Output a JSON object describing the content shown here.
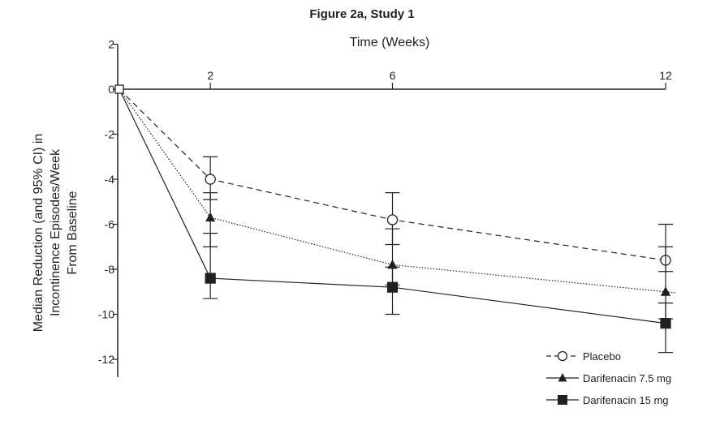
{
  "chart_data": {
    "type": "line",
    "title": "Figure 2a, Study 1",
    "xlabel": "Time (Weeks)",
    "ylabel": [
      "Median Reduction (and 95% CI) in",
      "Incontinence Episodes/Week",
      "From Baseline"
    ],
    "x_ticks": [
      "2",
      "6",
      "12"
    ],
    "y_ticks": [
      "2",
      "0",
      "-2",
      "-4",
      "-6",
      "-8",
      "-10",
      "-12"
    ],
    "xlim": [
      0,
      12
    ],
    "ylim": [
      -13,
      2
    ],
    "legend_position": "bottom-right",
    "series": [
      {
        "name": "Placebo",
        "marker": "open-circle",
        "line_style": "dashed",
        "points": [
          {
            "x": 0,
            "y": 0
          },
          {
            "x": 2,
            "y": -4.0,
            "ci": [
              -4.9,
              -3.0
            ]
          },
          {
            "x": 6,
            "y": -5.8,
            "ci": [
              -6.9,
              -4.6
            ]
          },
          {
            "x": 12,
            "y": -7.6,
            "ci": [
              -8.1,
              -6.0
            ]
          }
        ]
      },
      {
        "name": "Darifenacin 7.5 mg",
        "marker": "filled-triangle",
        "line_style": "dotted",
        "points": [
          {
            "x": 0,
            "y": 0
          },
          {
            "x": 2,
            "y": -5.7,
            "ci": [
              -7.0,
              -4.6
            ]
          },
          {
            "x": 6,
            "y": -7.8,
            "ci": [
              -8.7,
              -6.2
            ]
          },
          {
            "x": 12,
            "y": -9.0,
            "ci": [
              -10.2,
              -7.0
            ]
          }
        ]
      },
      {
        "name": "Darifenacin 15 mg",
        "marker": "filled-square",
        "line_style": "solid",
        "points": [
          {
            "x": 0,
            "y": 0
          },
          {
            "x": 2,
            "y": -8.4,
            "ci": [
              -9.3,
              -6.4
            ]
          },
          {
            "x": 6,
            "y": -8.8,
            "ci": [
              -10.0,
              -7.9
            ]
          },
          {
            "x": 12,
            "y": -10.4,
            "ci": [
              -11.7,
              -9.5
            ]
          }
        ]
      }
    ]
  }
}
